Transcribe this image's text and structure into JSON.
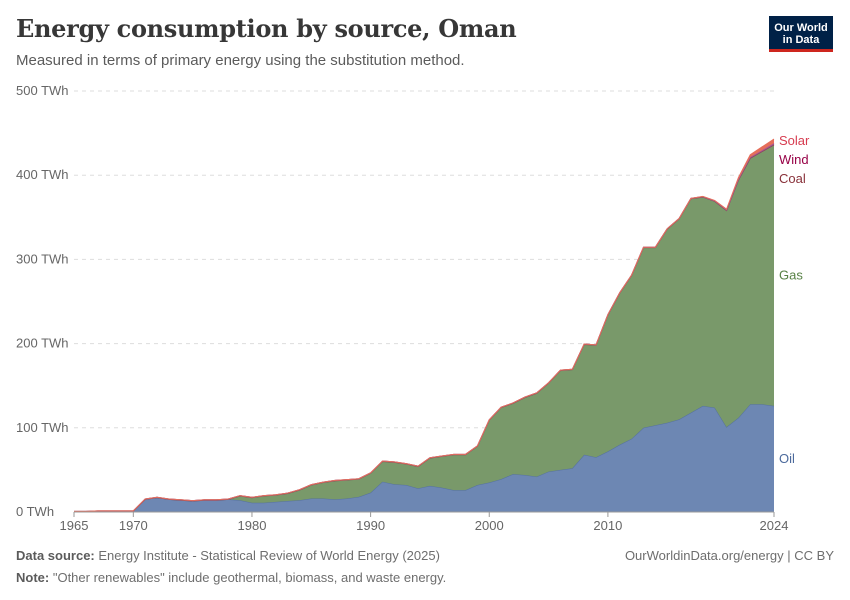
{
  "header": {
    "title": "Energy consumption by source, Oman",
    "subtitle": "Measured in terms of primary energy using the substitution method."
  },
  "logo": {
    "line1": "Our World",
    "line2": "in Data"
  },
  "footer": {
    "source_label": "Data source:",
    "source_text": "Energy Institute - Statistical Review of World Energy (2025)",
    "note_label": "Note:",
    "note_text": "\"Other renewables\" include geothermal, biomass, and waste energy.",
    "link": "OurWorldinData.org/energy | CC BY"
  },
  "chart_data": {
    "type": "area",
    "stacked": true,
    "title": "Energy consumption by source, Oman",
    "ylim": [
      0,
      500
    ],
    "xlim": [
      1965,
      2024
    ],
    "y_ticks": [
      {
        "value": 0,
        "label": "0 TWh"
      },
      {
        "value": 100,
        "label": "100 TWh"
      },
      {
        "value": 200,
        "label": "200 TWh"
      },
      {
        "value": 300,
        "label": "300 TWh"
      },
      {
        "value": 400,
        "label": "400 TWh"
      },
      {
        "value": 500,
        "label": "500 TWh"
      }
    ],
    "x_ticks": [
      {
        "value": 1965,
        "label": "1965"
      },
      {
        "value": 1970,
        "label": "1970"
      },
      {
        "value": 1980,
        "label": "1980"
      },
      {
        "value": 1990,
        "label": "1990"
      },
      {
        "value": 2000,
        "label": "2000"
      },
      {
        "value": 2010,
        "label": "2010"
      },
      {
        "value": 2024,
        "label": "2024"
      }
    ],
    "x": [
      1965,
      1966,
      1967,
      1968,
      1969,
      1970,
      1971,
      1972,
      1973,
      1974,
      1975,
      1976,
      1977,
      1978,
      1979,
      1980,
      1981,
      1982,
      1983,
      1984,
      1985,
      1986,
      1987,
      1988,
      1989,
      1990,
      1991,
      1992,
      1993,
      1994,
      1995,
      1996,
      1997,
      1998,
      1999,
      2000,
      2001,
      2002,
      2003,
      2004,
      2005,
      2006,
      2007,
      2008,
      2009,
      2010,
      2011,
      2012,
      2013,
      2014,
      2015,
      2016,
      2017,
      2018,
      2019,
      2020,
      2021,
      2022,
      2023,
      2024
    ],
    "series": [
      {
        "name": "Oil",
        "color": "#6d87b3",
        "label_color": "#4c6a9c",
        "values": [
          0.5,
          0.5,
          1,
          1,
          1,
          1,
          15,
          17,
          15,
          14,
          13,
          14,
          14,
          15,
          14,
          11,
          11,
          12,
          13,
          14,
          16,
          16,
          15,
          16,
          18,
          23,
          36,
          33,
          32,
          28,
          31,
          29,
          26,
          26,
          32,
          35,
          39,
          45,
          44,
          42,
          48,
          50,
          52,
          68,
          65,
          72,
          80,
          87,
          100,
          103,
          106,
          110,
          118,
          126,
          124,
          101,
          112,
          128,
          128,
          126
        ]
      },
      {
        "name": "Gas",
        "color": "#79996a",
        "label_color": "#578145",
        "values": [
          0,
          0,
          0,
          0,
          0,
          0,
          0,
          0,
          0,
          0,
          0,
          0,
          0,
          0,
          5,
          6,
          8,
          8,
          9,
          12,
          16,
          19,
          22,
          22,
          21,
          23,
          24,
          26,
          25,
          26,
          33,
          37,
          42,
          42,
          46,
          74,
          85,
          84,
          92,
          99,
          105,
          118,
          117,
          131,
          133,
          162,
          180,
          194,
          214,
          211,
          230,
          238,
          254,
          248,
          245,
          257,
          282,
          292,
          300,
          310
        ]
      },
      {
        "name": "Coal",
        "color": "#8c4b55",
        "label_color": "#883039",
        "values": [
          0.3,
          0.3,
          0.3,
          0.3,
          0.3,
          0.3,
          0.5,
          0.5,
          0.5,
          0.5,
          0.5,
          0.5,
          0.5,
          0.5,
          0.5,
          0.5,
          0.5,
          0.5,
          0.5,
          0.5,
          0.5,
          0.5,
          0.5,
          0.5,
          0.5,
          0.5,
          0.5,
          0.5,
          0.5,
          0.5,
          0.5,
          0.5,
          0.5,
          0.5,
          0.5,
          0.5,
          0.5,
          0.5,
          0.5,
          0.5,
          0.5,
          0.5,
          0.5,
          0.5,
          0.5,
          0.5,
          0.5,
          0.5,
          0.5,
          0.5,
          0.5,
          0.5,
          0.5,
          0.5,
          0.5,
          0.5,
          0.5,
          0.5,
          0.5,
          0.5
        ]
      },
      {
        "name": "Wind",
        "color": "#a2559c",
        "label_color": "#970046",
        "values": [
          0,
          0,
          0,
          0,
          0,
          0,
          0,
          0,
          0,
          0,
          0,
          0,
          0,
          0,
          0,
          0,
          0,
          0,
          0,
          0,
          0,
          0,
          0,
          0,
          0,
          0,
          0,
          0,
          0,
          0,
          0,
          0,
          0,
          0,
          0,
          0,
          0,
          0,
          0,
          0,
          0,
          0,
          0,
          0,
          0,
          0,
          0,
          0,
          0,
          0,
          0,
          0,
          0,
          0,
          0,
          0.2,
          0.6,
          0.9,
          1.2,
          1.5
        ]
      },
      {
        "name": "Solar",
        "color": "#e56e5a",
        "label_color": "#d73c50",
        "values": [
          0,
          0,
          0,
          0,
          0,
          0,
          0,
          0,
          0,
          0,
          0,
          0,
          0,
          0,
          0,
          0,
          0,
          0,
          0,
          0,
          0,
          0,
          0,
          0,
          0,
          0,
          0,
          0,
          0,
          0,
          0,
          0,
          0,
          0,
          0,
          0,
          0,
          0,
          0,
          0,
          0,
          0,
          0,
          0,
          0,
          0,
          0,
          0,
          0,
          0,
          0,
          0,
          0,
          0.3,
          0.5,
          1,
          2,
          3,
          4,
          5
        ]
      }
    ]
  }
}
